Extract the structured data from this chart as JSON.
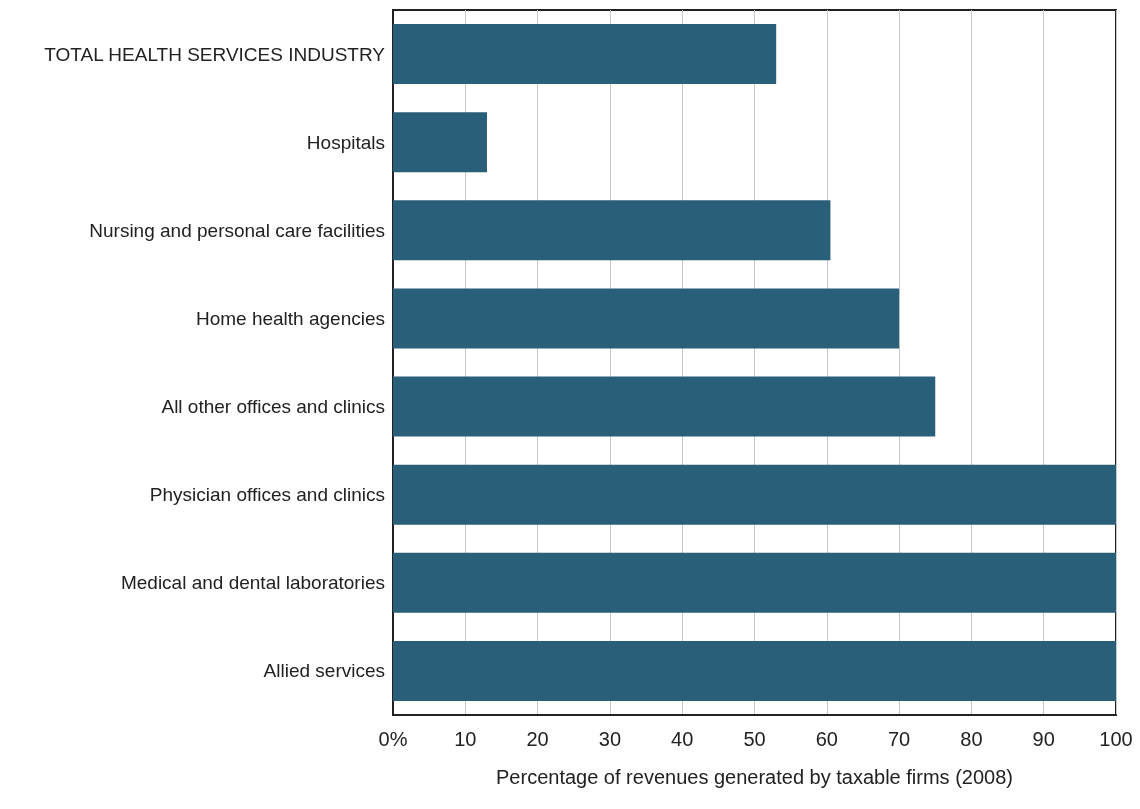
{
  "chart_data": {
    "type": "bar",
    "orientation": "horizontal",
    "xlabel": "Percentage of revenues generated by taxable firms (2008)",
    "categories": [
      "TOTAL HEALTH SERVICES INDUSTRY",
      "Hospitals",
      "Nursing and personal care facilities",
      "Home health agencies",
      "All other offices and clinics",
      "Physician offices and clinics",
      "Medical and dental laboratories",
      "Allied services"
    ],
    "values": [
      53,
      13,
      60.5,
      70,
      75,
      100,
      100,
      100
    ],
    "color": "#2a5f7a",
    "xlim": [
      0,
      100
    ],
    "xticks": [
      {
        "value": 0,
        "label": "0%"
      },
      10,
      20,
      30,
      40,
      50,
      60,
      70,
      80,
      90,
      100
    ],
    "grid": "x"
  }
}
